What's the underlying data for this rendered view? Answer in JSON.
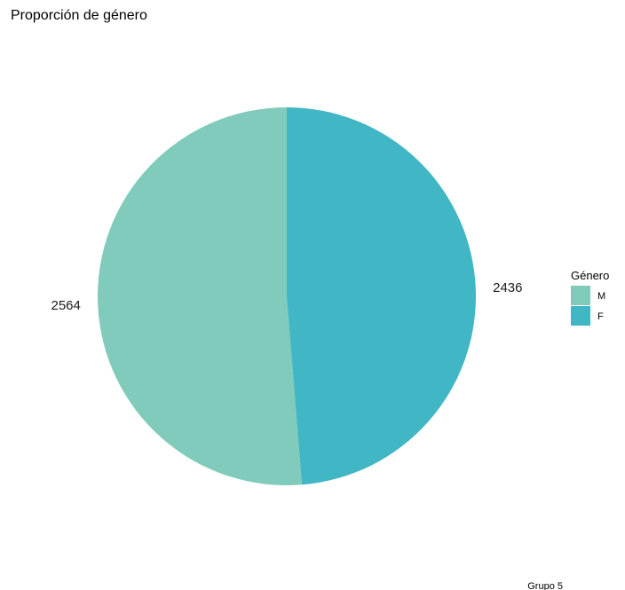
{
  "chart_data": {
    "type": "pie",
    "title": "Proporción de género",
    "caption": "Grupo 5",
    "legend": {
      "title": "Género",
      "placement": "right"
    },
    "categories": [
      "M",
      "F"
    ],
    "values": [
      2564,
      2436
    ],
    "colors": [
      "#80cbbb",
      "#41b6c4"
    ],
    "start": "12 o'clock",
    "direction": "counter-clockwise for M, clockwise for F"
  }
}
